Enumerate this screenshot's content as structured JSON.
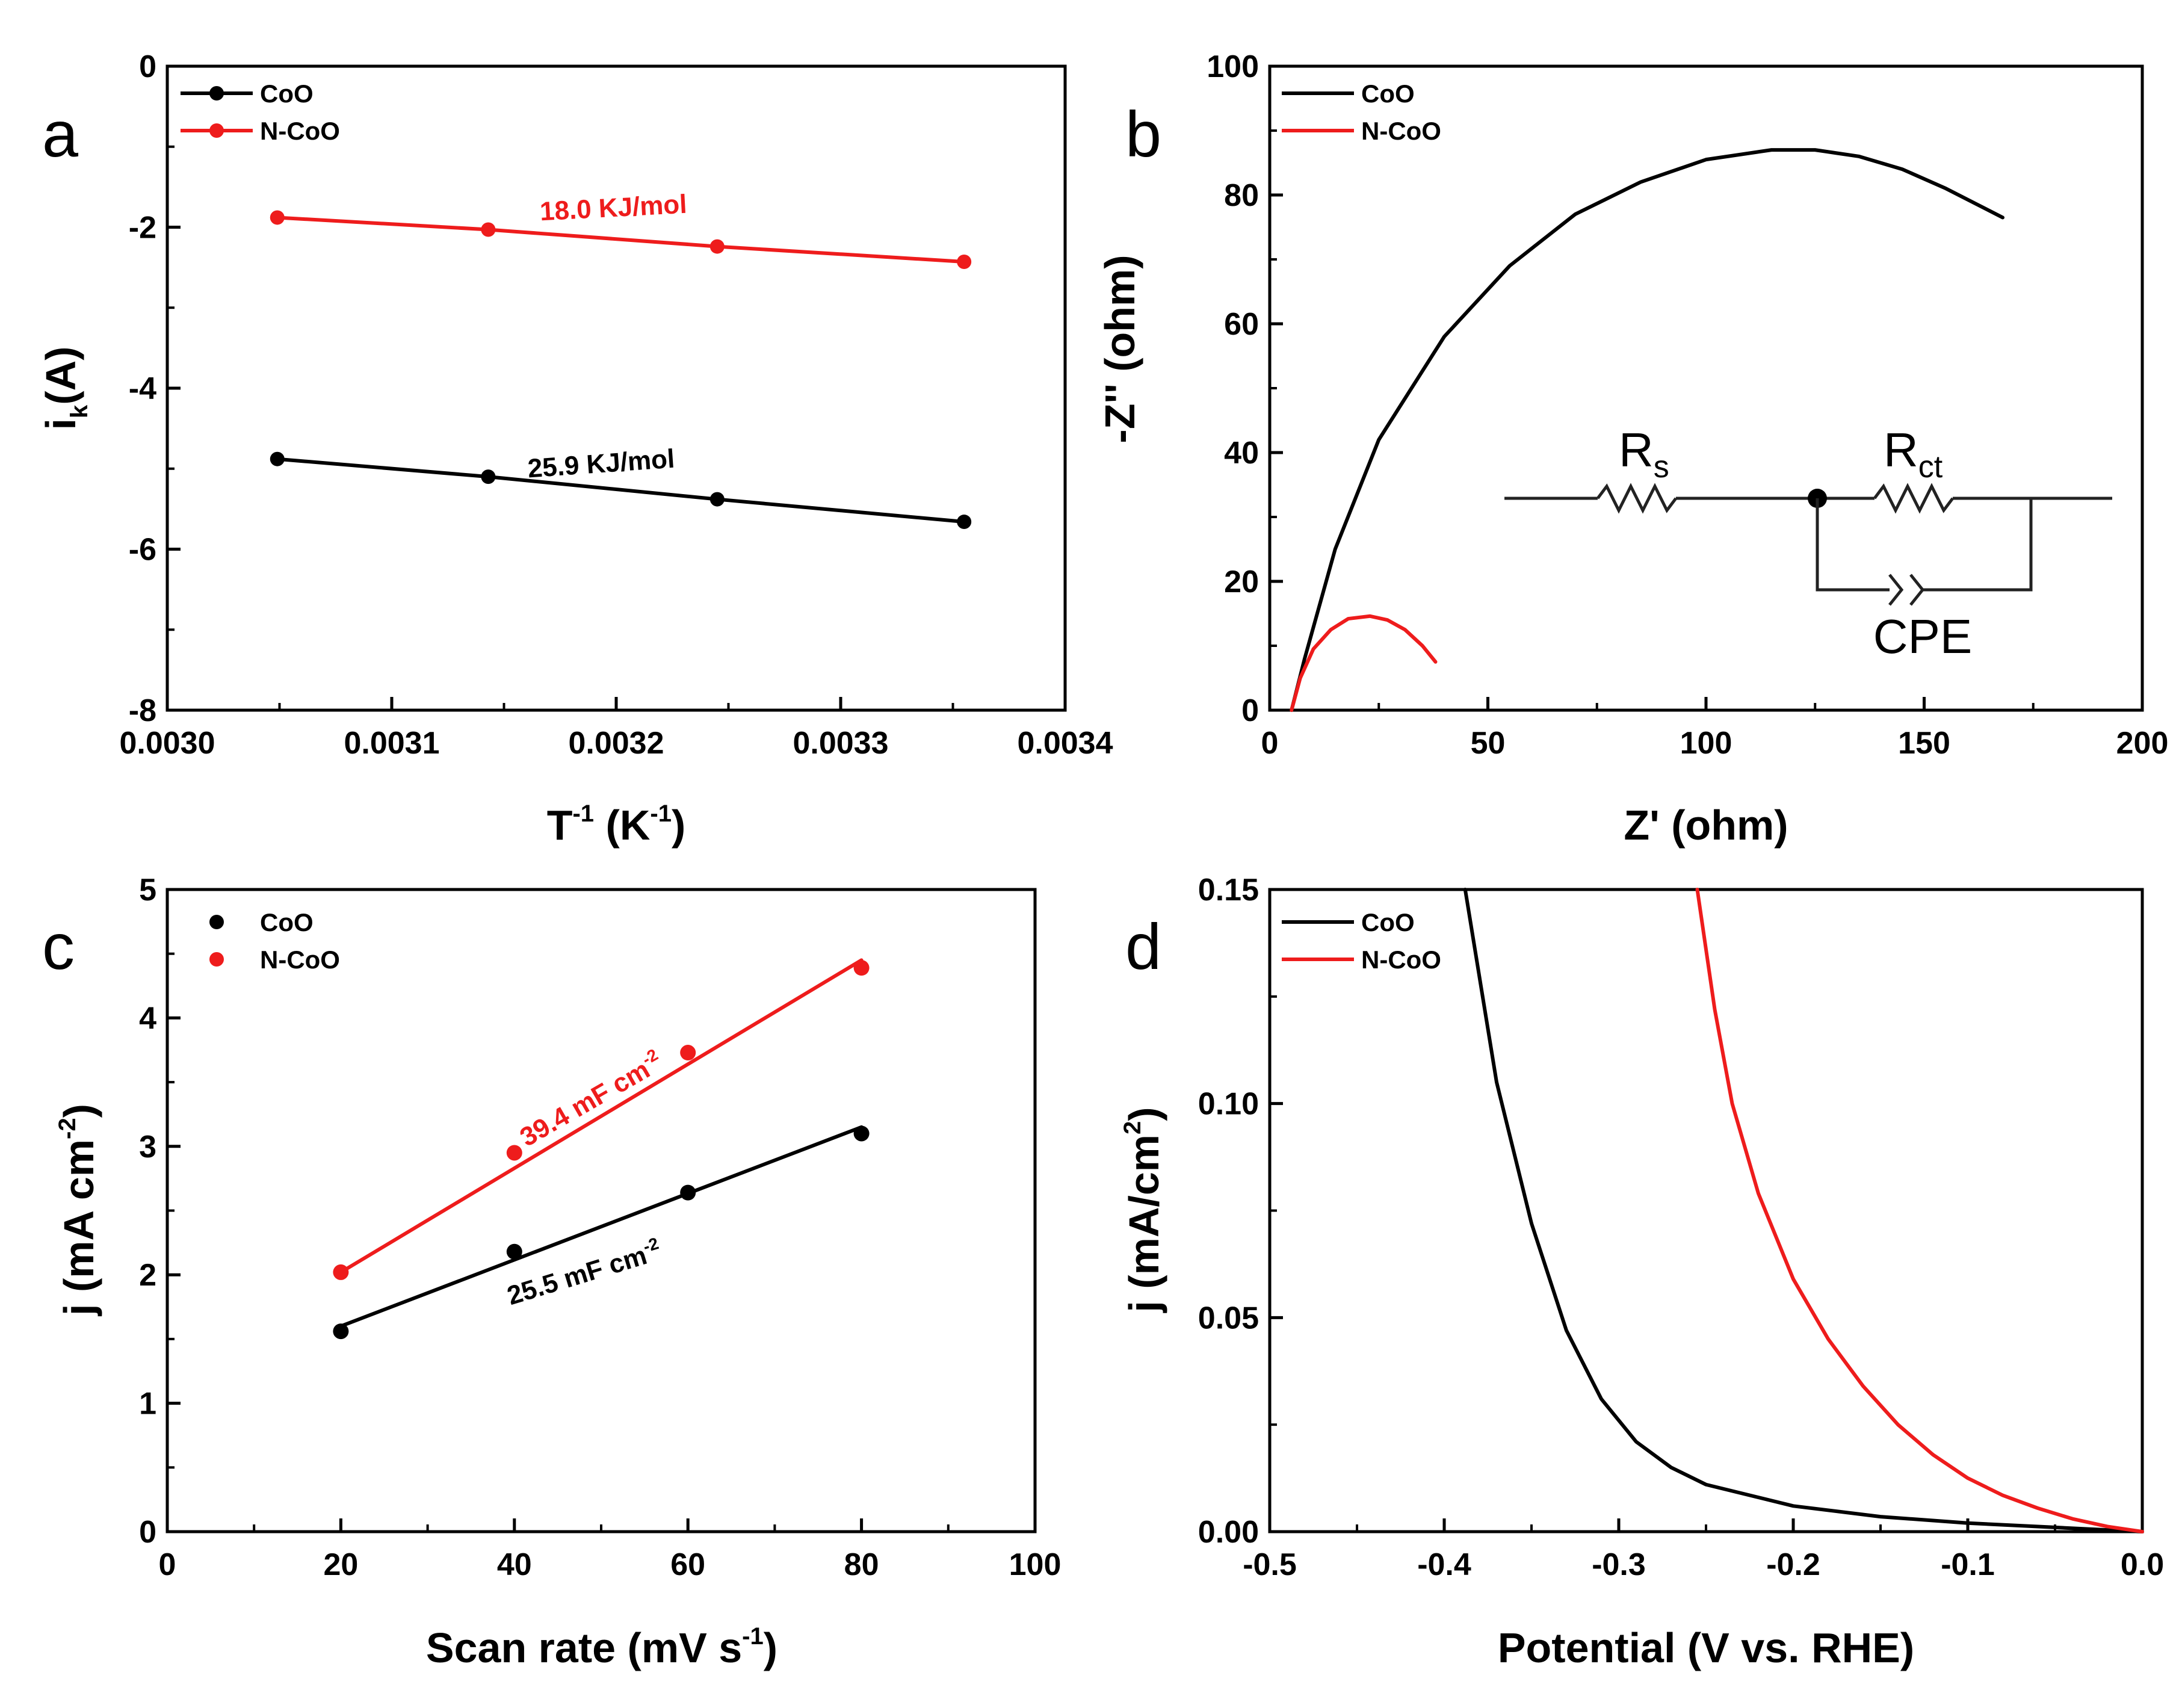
{
  "figure": {
    "colors": {
      "black": "#000000",
      "red": "#ee1c1c"
    }
  },
  "chart_data": [
    {
      "panel": "a",
      "type": "line",
      "xlabel": {
        "main": "T",
        "sup1": "-1",
        "mid": " (K",
        "sup2": "-1",
        "end": ")"
      },
      "ylabel": {
        "main": "i",
        "sub": "k",
        "end": "(A)"
      },
      "xlim": [
        0.003,
        0.0034
      ],
      "ylim": [
        -8,
        0
      ],
      "xticks": [
        "0.0030",
        "0.0031",
        "0.0032",
        "0.0033",
        "0.0034"
      ],
      "yticks": [
        "-8",
        "-6",
        "-4",
        "-2",
        "0"
      ],
      "legend": [
        "CoO",
        "N-CoO"
      ],
      "series": [
        {
          "name": "CoO",
          "color": "#000000",
          "x": [
            0.003049,
            0.003143,
            0.003245,
            0.003355
          ],
          "y": [
            -4.88,
            -5.1,
            -5.38,
            -5.66
          ]
        },
        {
          "name": "N-CoO",
          "color": "#ee1c1c",
          "x": [
            0.003049,
            0.003143,
            0.003245,
            0.003355
          ],
          "y": [
            -1.88,
            -2.03,
            -2.24,
            -2.43
          ]
        }
      ],
      "annotations": [
        {
          "text": "18.0 KJ/mol",
          "color": "#ee1c1c"
        },
        {
          "text": "25.9 KJ/mol",
          "color": "#000000"
        }
      ]
    },
    {
      "panel": "b",
      "type": "line",
      "xlabel": "Z' (ohm)",
      "ylabel": "-Z'' (ohm)",
      "xlim": [
        0,
        200
      ],
      "ylim": [
        0,
        100
      ],
      "xticks": [
        "0",
        "50",
        "100",
        "150",
        "200"
      ],
      "yticks": [
        "0",
        "20",
        "40",
        "60",
        "80",
        "100"
      ],
      "legend": [
        "CoO",
        "N-CoO"
      ],
      "series": [
        {
          "name": "CoO",
          "color": "#000000",
          "x": [
            5,
            8,
            15,
            25,
            40,
            55,
            70,
            85,
            100,
            115,
            125,
            135,
            145,
            155,
            168
          ],
          "y": [
            0,
            8,
            25,
            42,
            58,
            69,
            77,
            82,
            85.5,
            87,
            87,
            86,
            84,
            81,
            76.5
          ]
        },
        {
          "name": "N-CoO",
          "color": "#ee1c1c",
          "x": [
            5,
            7,
            10,
            14,
            18,
            23,
            27,
            31,
            35,
            38
          ],
          "y": [
            0,
            5,
            9.5,
            12.5,
            14.2,
            14.6,
            14,
            12.5,
            10,
            7.5
          ]
        }
      ],
      "circuit": {
        "rs_main": "R",
        "rs_sub": "s",
        "rct_main": "R",
        "rct_sub": "ct",
        "cpe": "CPE"
      }
    },
    {
      "panel": "c",
      "type": "scatter",
      "xlabel": {
        "main": "Scan rate (mV s",
        "sup": "-1",
        "end": ")"
      },
      "ylabel": {
        "main": "j (mA cm",
        "sup": "-2",
        "end": ")"
      },
      "xlim": [
        0,
        100
      ],
      "ylim": [
        0,
        5
      ],
      "xticks": [
        "0",
        "20",
        "40",
        "60",
        "80",
        "100"
      ],
      "yticks": [
        "0",
        "1",
        "2",
        "3",
        "4",
        "5"
      ],
      "legend": [
        "CoO",
        "N-CoO"
      ],
      "series": [
        {
          "name": "CoO",
          "color": "#000000",
          "x": [
            20,
            40,
            60,
            80
          ],
          "y": [
            1.56,
            2.18,
            2.64,
            3.1
          ],
          "fit": [
            [
              20,
              1.6
            ],
            [
              80,
              3.15
            ]
          ]
        },
        {
          "name": "N-CoO",
          "color": "#ee1c1c",
          "x": [
            20,
            40,
            60,
            80
          ],
          "y": [
            2.02,
            2.95,
            3.73,
            4.39
          ],
          "fit": [
            [
              20,
              2.02
            ],
            [
              80,
              4.45
            ]
          ]
        }
      ],
      "annotations": [
        {
          "main": "39.4 mF cm",
          "sup": "-2",
          "color": "#ee1c1c"
        },
        {
          "main": "25.5 mF cm",
          "sup": "-2",
          "color": "#000000"
        }
      ]
    },
    {
      "panel": "d",
      "type": "line",
      "xlabel": "Potential (V vs. RHE)",
      "ylabel": {
        "main": "j (mA/cm",
        "sup": "2",
        "end": ")"
      },
      "xlim": [
        -0.5,
        0.0
      ],
      "ylim": [
        0,
        0.15
      ],
      "xticks": [
        "-0.5",
        "-0.4",
        "-0.3",
        "-0.2",
        "-0.1",
        "0.0"
      ],
      "yticks": [
        "0.00",
        "0.05",
        "0.10",
        "0.15"
      ],
      "legend": [
        "CoO",
        "N-CoO"
      ],
      "series": [
        {
          "name": "CoO",
          "color": "#000000",
          "x": [
            -0.388,
            -0.37,
            -0.35,
            -0.33,
            -0.31,
            -0.29,
            -0.27,
            -0.25,
            -0.2,
            -0.15,
            -0.1,
            -0.05,
            0.0
          ],
          "y": [
            0.15,
            0.105,
            0.072,
            0.047,
            0.031,
            0.021,
            0.015,
            0.011,
            0.006,
            0.0035,
            0.002,
            0.001,
            0.0
          ]
        },
        {
          "name": "N-CoO",
          "color": "#ee1c1c",
          "x": [
            -0.255,
            -0.245,
            -0.235,
            -0.22,
            -0.2,
            -0.18,
            -0.16,
            -0.14,
            -0.12,
            -0.1,
            -0.08,
            -0.06,
            -0.04,
            -0.02,
            0.0
          ],
          "y": [
            0.15,
            0.122,
            0.1,
            0.079,
            0.059,
            0.045,
            0.034,
            0.025,
            0.018,
            0.0125,
            0.0085,
            0.0055,
            0.003,
            0.0012,
            0.0
          ]
        }
      ]
    }
  ],
  "panel_labels": [
    "a",
    "b",
    "c",
    "d"
  ]
}
